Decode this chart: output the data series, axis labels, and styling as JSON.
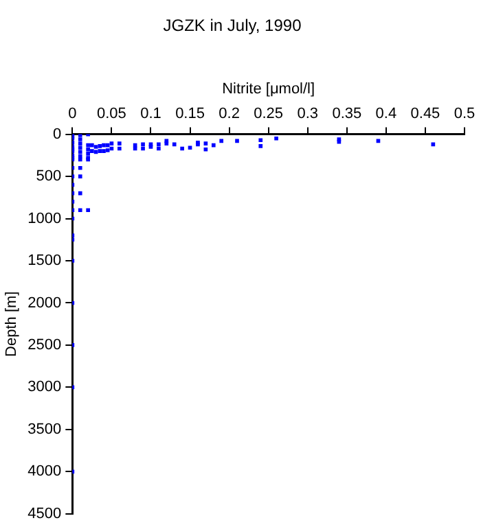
{
  "chart_data": {
    "type": "scatter",
    "title": "JGZK in July, 1990",
    "xlabel": "Nitrite [μmol/l]",
    "ylabel": "Depth [m]",
    "marker": "square",
    "grid": false,
    "xlim": [
      0,
      0.5
    ],
    "xticks": [
      0,
      0.05,
      0.1,
      0.15,
      0.2,
      0.25,
      0.3,
      0.35,
      0.4,
      0.45,
      0.5
    ],
    "ylim": [
      4500,
      0
    ],
    "yticks": [
      0,
      500,
      1000,
      1500,
      2000,
      2500,
      3000,
      3500,
      4000,
      4500
    ],
    "series": [
      {
        "color": "#0000ff",
        "x": [
          0,
          0,
          0,
          0,
          0,
          0,
          0,
          0,
          0,
          0,
          0,
          0,
          0,
          0,
          0,
          0,
          0,
          0,
          0,
          0,
          0,
          0,
          0,
          0,
          0.01,
          0.01,
          0.01,
          0.01,
          0.01,
          0.01,
          0.01,
          0.01,
          0.01,
          0.01,
          0.01,
          0.02,
          0.02,
          0.02,
          0.02,
          0.02,
          0.02,
          0.02,
          0.025,
          0.025,
          0.03,
          0.03,
          0.035,
          0.035,
          0.04,
          0.04,
          0.045,
          0.045,
          0.05,
          0.05,
          0.06,
          0.06,
          0.08,
          0.08,
          0.09,
          0.09,
          0.1,
          0.1,
          0.11,
          0.11,
          0.12,
          0.12,
          0.13,
          0.14,
          0.15,
          0.16,
          0.16,
          0.17,
          0.17,
          0.18,
          0.19,
          0.21,
          0.24,
          0.24,
          0.26,
          0.34,
          0.34,
          0.39,
          0.46
        ],
        "values": [
          0,
          50,
          100,
          150,
          200,
          250,
          300,
          400,
          500,
          600,
          700,
          800,
          900,
          1000,
          1200,
          1250,
          1500,
          2000,
          2500,
          3000,
          4000,
          30,
          180,
          280,
          10,
          60,
          110,
          160,
          210,
          260,
          300,
          400,
          500,
          700,
          900,
          0,
          130,
          180,
          230,
          280,
          300,
          900,
          130,
          200,
          150,
          210,
          140,
          200,
          130,
          200,
          130,
          190,
          110,
          170,
          110,
          170,
          130,
          170,
          120,
          170,
          120,
          150,
          120,
          170,
          80,
          110,
          120,
          170,
          160,
          100,
          120,
          110,
          180,
          130,
          80,
          80,
          70,
          140,
          50,
          60,
          90,
          80,
          120
        ]
      }
    ]
  }
}
